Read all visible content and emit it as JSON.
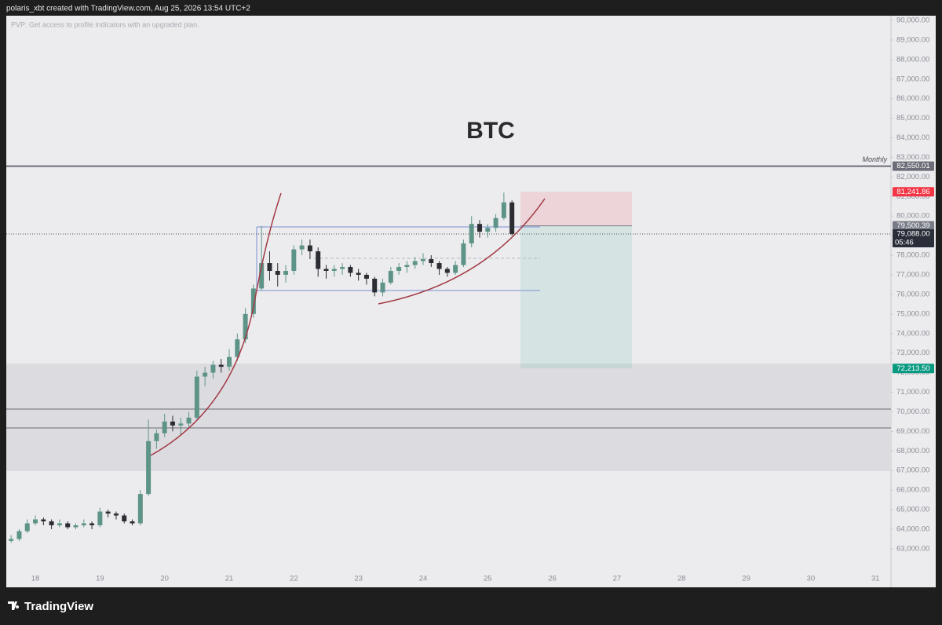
{
  "header": "polaris_xbt created with TradingView.com, Aug 25, 2026 13:54 UTC+2",
  "notice": "PVP: Get access to profile indicators with an upgraded plan.",
  "brand": "TradingView",
  "chart_data": {
    "type": "candlestick",
    "title": "BTC",
    "x": [
      17.625,
      17.75,
      17.875,
      18,
      18.125,
      18.25,
      18.375,
      18.5,
      18.625,
      18.75,
      18.875,
      19,
      19.125,
      19.25,
      19.375,
      19.5,
      19.625,
      19.75,
      19.875,
      20,
      20.125,
      20.25,
      20.375,
      20.5,
      20.625,
      20.75,
      20.875,
      21,
      21.125,
      21.25,
      21.375,
      21.5,
      21.625,
      21.75,
      21.875,
      22,
      22.125,
      22.25,
      22.375,
      22.5,
      22.625,
      22.75,
      22.875,
      23,
      23.125,
      23.25,
      23.375,
      23.5,
      23.625,
      23.75,
      23.875,
      24,
      24.125,
      24.25,
      24.375,
      24.5,
      24.625,
      24.75,
      24.875,
      25,
      25.125,
      25.25,
      25.375
    ],
    "open": [
      63400,
      63500,
      63900,
      64300,
      64500,
      64400,
      64200,
      64300,
      64100,
      64200,
      64300,
      64200,
      64900,
      64800,
      64700,
      64400,
      64300,
      65800,
      68500,
      68900,
      69500,
      69300,
      69400,
      69700,
      71800,
      72000,
      72400,
      72300,
      72800,
      73700,
      75000,
      76300,
      77600,
      77200,
      77000,
      77200,
      78300,
      78500,
      78200,
      77300,
      77200,
      77300,
      77400,
      77100,
      77000,
      76800,
      76100,
      76600,
      77200,
      77400,
      77500,
      77700,
      77800,
      77600,
      77300,
      77100,
      77500,
      78600,
      79600,
      79200,
      79400,
      79900,
      80700
    ],
    "high": [
      63700,
      64000,
      64500,
      64700,
      64600,
      64500,
      64500,
      64400,
      64300,
      64500,
      64400,
      65100,
      65000,
      64900,
      64800,
      64500,
      66000,
      69600,
      69100,
      69900,
      69800,
      69700,
      70000,
      72100,
      72300,
      72600,
      72700,
      73200,
      74000,
      75300,
      76500,
      79500,
      78200,
      77600,
      77500,
      78500,
      78800,
      78800,
      78400,
      77500,
      77500,
      77600,
      77500,
      77300,
      77100,
      76900,
      76800,
      77400,
      77600,
      77700,
      77900,
      78100,
      78000,
      77700,
      77400,
      77700,
      78800,
      80000,
      79800,
      79600,
      80100,
      81200,
      80800
    ],
    "low": [
      63300,
      63400,
      63800,
      64200,
      64200,
      64000,
      64100,
      64000,
      64000,
      64100,
      64000,
      64100,
      64600,
      64500,
      64300,
      64200,
      64200,
      65700,
      68100,
      68700,
      69000,
      68800,
      69200,
      69600,
      71300,
      71700,
      72000,
      72100,
      72600,
      73500,
      74800,
      76200,
      76700,
      76400,
      76600,
      77000,
      78000,
      77800,
      76900,
      76800,
      76900,
      77000,
      76900,
      76700,
      76500,
      75900,
      75900,
      76500,
      77000,
      77100,
      77300,
      77500,
      77400,
      77000,
      76900,
      77000,
      77400,
      78400,
      78900,
      78900,
      79200,
      79800,
      79000
    ],
    "close": [
      63500,
      63900,
      64300,
      64500,
      64400,
      64200,
      64300,
      64100,
      64200,
      64300,
      64200,
      64900,
      64800,
      64700,
      64400,
      64300,
      65800,
      68500,
      68900,
      69500,
      69300,
      69400,
      69700,
      71800,
      72000,
      72400,
      72300,
      72800,
      73700,
      75000,
      76300,
      77600,
      77200,
      77000,
      77200,
      78300,
      78500,
      78200,
      77300,
      77200,
      77300,
      77400,
      77100,
      77000,
      76800,
      76100,
      76600,
      77200,
      77400,
      77500,
      77700,
      77800,
      77600,
      77300,
      77100,
      77500,
      78600,
      79600,
      79200,
      79400,
      79900,
      80700,
      79088
    ],
    "up_color": "#5e9488",
    "down_color": "#2b2d33",
    "xlim": [
      17.55,
      31.24
    ],
    "xticks": [
      18,
      19,
      20,
      21,
      22,
      23,
      24,
      25,
      26,
      27,
      28,
      29,
      30,
      31
    ],
    "ylim": [
      61030,
      90240
    ],
    "yticks": [
      {
        "value": 63000,
        "label": "63,000.00"
      },
      {
        "value": 64000,
        "label": "64,000.00"
      },
      {
        "value": 65000,
        "label": "65,000.00"
      },
      {
        "value": 66000,
        "label": "66,000.00"
      },
      {
        "value": 67000,
        "label": "67,000.00"
      },
      {
        "value": 68000,
        "label": "68,000.00"
      },
      {
        "value": 69000,
        "label": "69,000.00"
      },
      {
        "value": 70000,
        "label": "70,000.00"
      },
      {
        "value": 71000,
        "label": "71,000.00"
      },
      {
        "value": 72000,
        "label": "72,000.00"
      },
      {
        "value": 73000,
        "label": "73,000.00"
      },
      {
        "value": 74000,
        "label": "74,000.00"
      },
      {
        "value": 75000,
        "label": "75,000.00"
      },
      {
        "value": 76000,
        "label": "76,000.00"
      },
      {
        "value": 77000,
        "label": "77,000.00"
      },
      {
        "value": 78000,
        "label": "78,000.00"
      },
      {
        "value": 79000,
        "label": "79,000.00"
      },
      {
        "value": 80000,
        "label": "80,000.00"
      },
      {
        "value": 81000,
        "label": "81,000.00"
      },
      {
        "value": 82000,
        "label": "82,000.00"
      },
      {
        "value": 83000,
        "label": "83,000.00"
      },
      {
        "value": 84000,
        "label": "84,000.00"
      },
      {
        "value": 85000,
        "label": "85,000.00"
      },
      {
        "value": 86000,
        "label": "86,000.00"
      },
      {
        "value": 87000,
        "label": "87,000.00"
      },
      {
        "value": 88000,
        "label": "88,000.00"
      },
      {
        "value": 89000,
        "label": "89,000.00"
      },
      {
        "value": 90000,
        "label": "90,000.00"
      }
    ],
    "monthly_level": {
      "name": "Monthly",
      "value": 82550.01,
      "label": "82,550.01",
      "color": "#6b6e78"
    },
    "stop_level": {
      "value": 81241.86,
      "label": "81,241.86",
      "color": "#f23645"
    },
    "entry_level": {
      "value": 79500.39,
      "label": "79,500.39",
      "color": "#787b86"
    },
    "target_level": {
      "value": 72213.5,
      "label": "72,213.50",
      "color": "#089981"
    },
    "last_price": {
      "value": 79088,
      "label": "79,088.00",
      "countdown": "05:46",
      "color": "#2a2e39"
    }
  }
}
